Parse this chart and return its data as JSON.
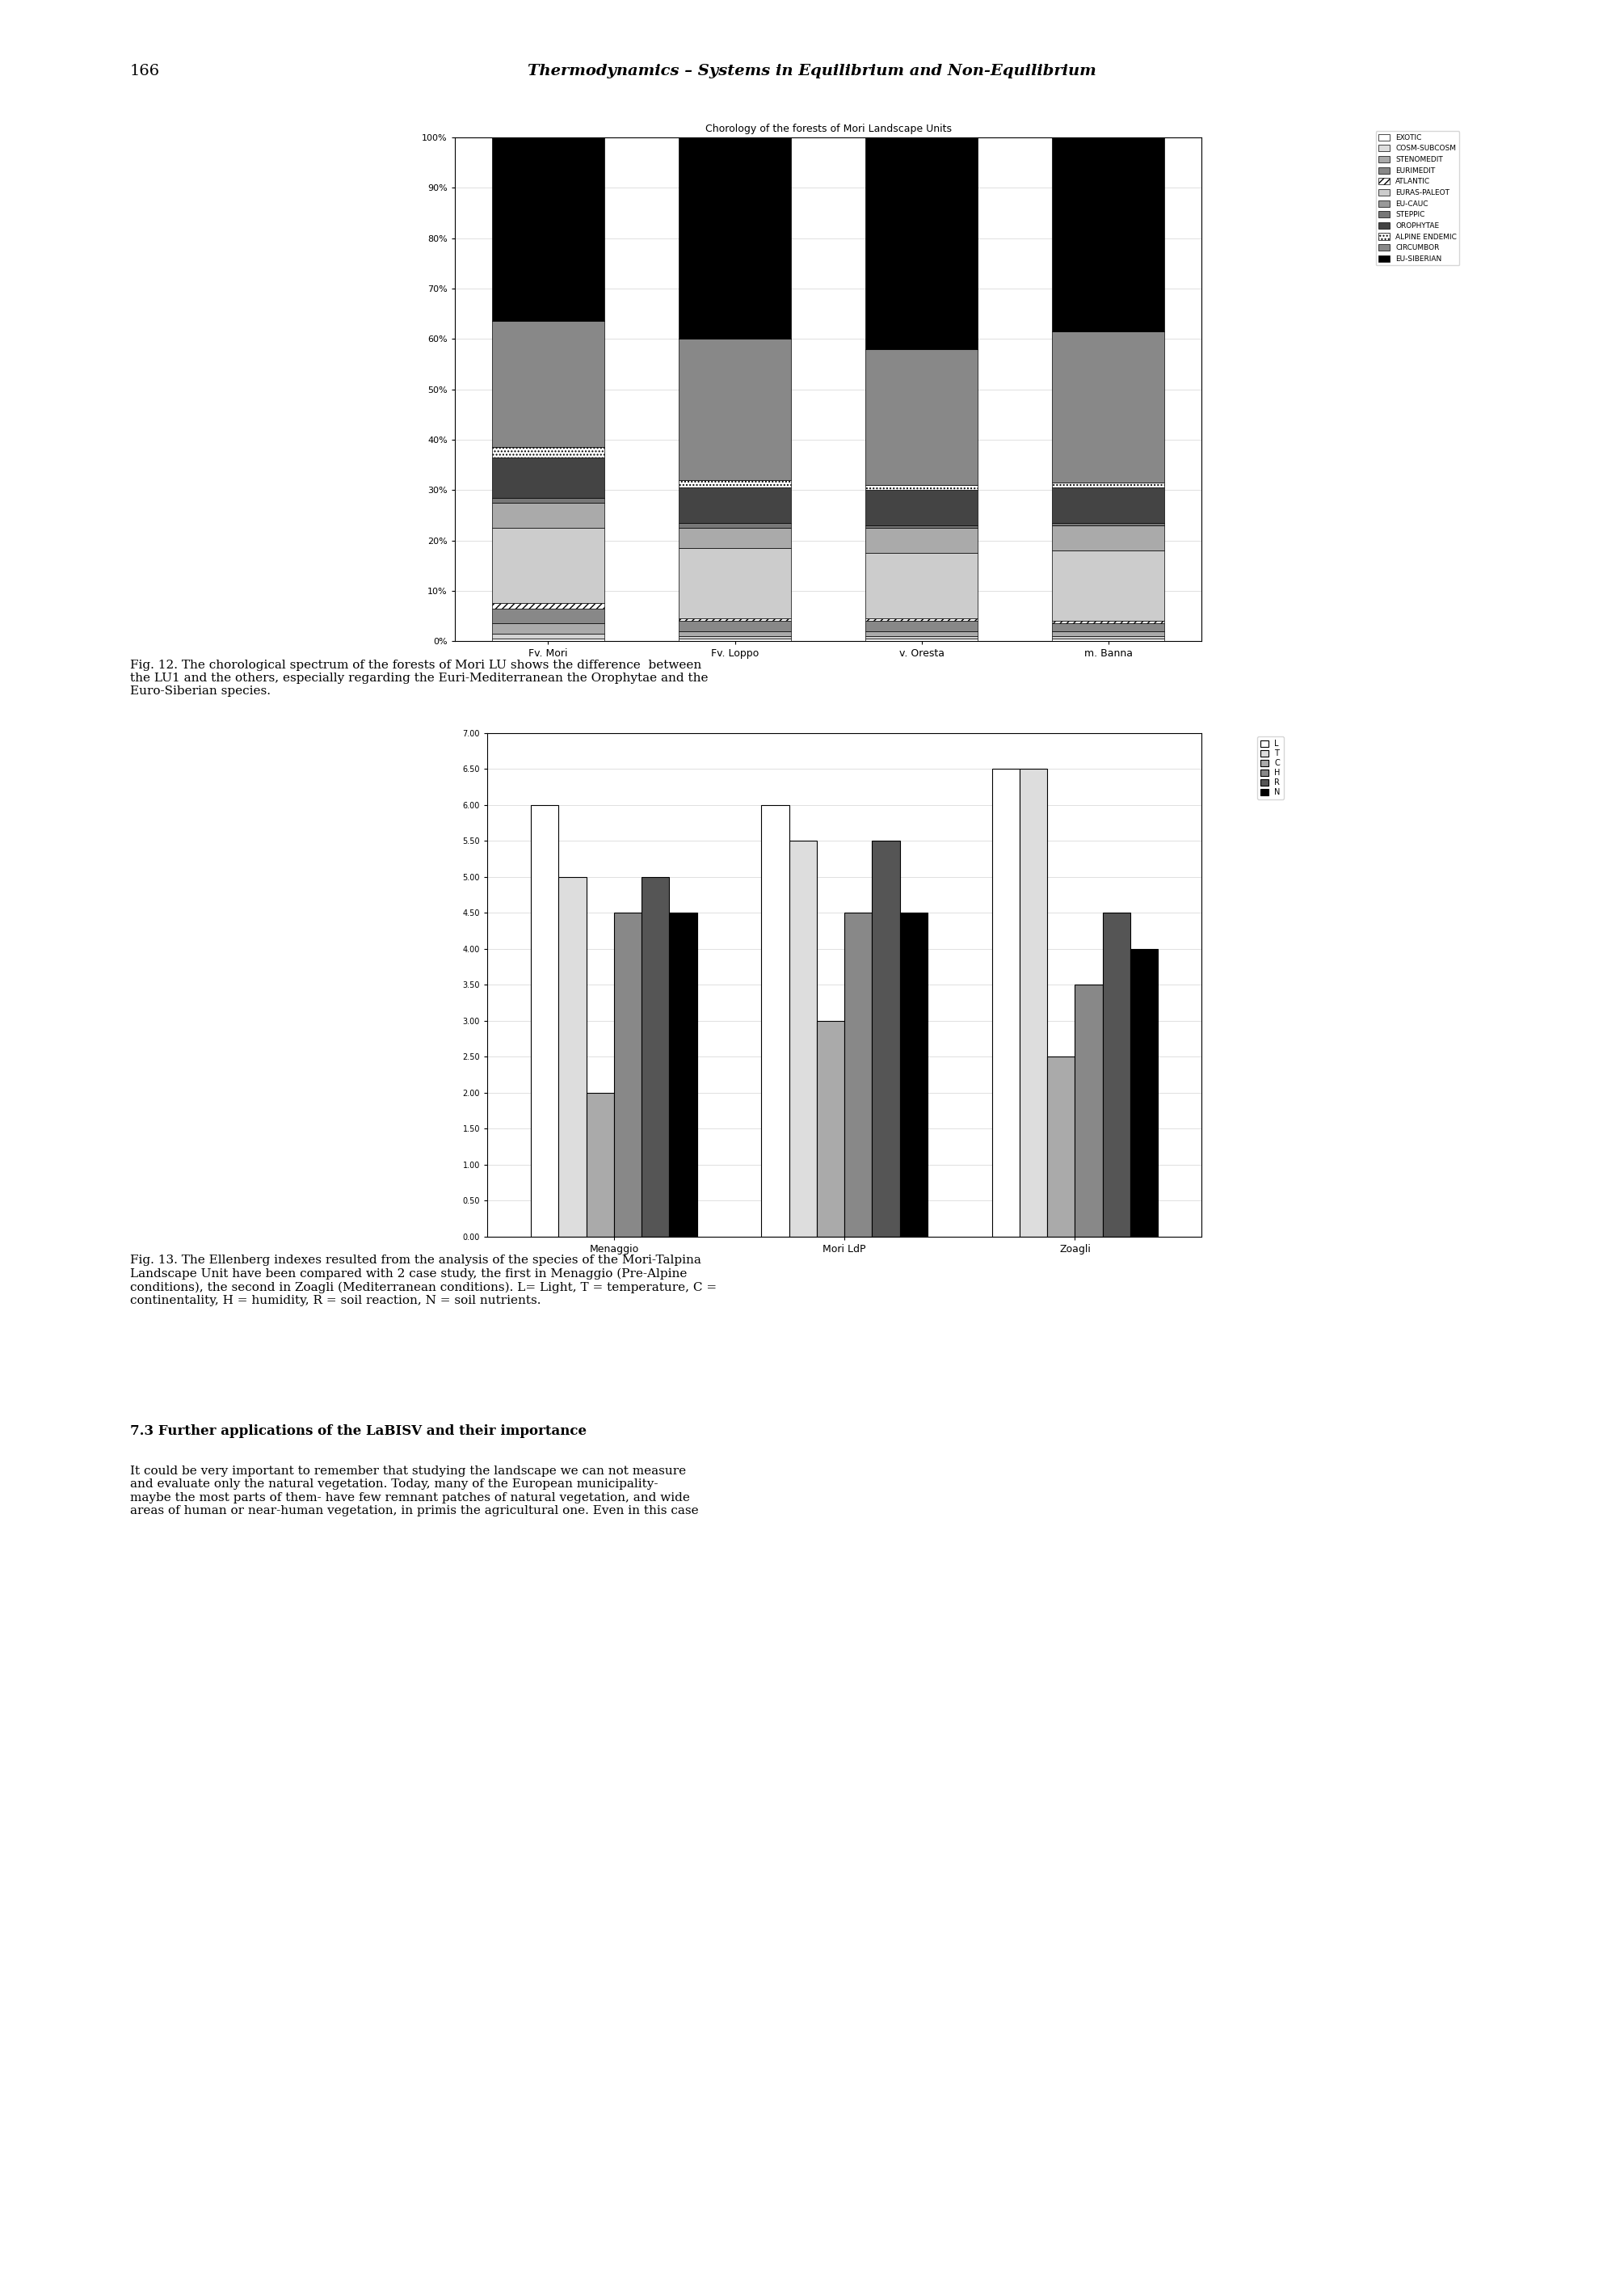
{
  "page_title": "166",
  "page_header": "Thermodynamics – Systems in Equilibrium and Non-Equilibrium",
  "fig12_title": "Chorology of the forests of Mori Landscape Units",
  "fig12_categories": [
    "Fv. Mori",
    "Fv. Loppo",
    "v. Oresta",
    "m. Banna"
  ],
  "fig12_legend": [
    "EXOTIC",
    "COSM-SUBCOSM",
    "STENOMEDIT",
    "EURIMEDIT",
    "ATLANTIC",
    "EURAS-PALEOT",
    "EU-CAUC",
    "STEPPIC",
    "OROPHYTAE",
    "ALPINE ENDEMIC",
    "CIRCUMBOR",
    "EU-SIBERIAN"
  ],
  "fig12_colors": [
    "#ffffff",
    "#cccccc",
    "#999999",
    "#666666",
    "#ffffff",
    "#cccccc",
    "#999999",
    "#666666",
    "#333333",
    "#ffffff",
    "#666666",
    "#000000"
  ],
  "fig12_data": [
    [
      0.5,
      0.5,
      0.5,
      0.5
    ],
    [
      1.0,
      0.5,
      0.5,
      0.5
    ],
    [
      2.0,
      1.0,
      1.0,
      1.0
    ],
    [
      3.0,
      2.0,
      2.0,
      1.5
    ],
    [
      1.0,
      0.5,
      0.5,
      0.5
    ],
    [
      15.0,
      14.0,
      13.0,
      14.0
    ],
    [
      5.0,
      4.0,
      5.0,
      5.0
    ],
    [
      1.0,
      1.0,
      0.5,
      0.5
    ],
    [
      8.0,
      7.0,
      7.0,
      7.0
    ],
    [
      2.0,
      1.5,
      1.0,
      1.0
    ],
    [
      25.0,
      28.0,
      27.0,
      30.0
    ],
    [
      36.5,
      40.0,
      42.5,
      39.5
    ]
  ],
  "fig12_caption": "Fig. 12. The chorological spectrum of the forests of Mori LU shows the difference  between\nthe LU1 and the others, especially regarding the Euri-Mediterranean the Orophytae and the\nEuro-Siberian species.",
  "fig13_title": "",
  "fig13_groups": [
    "Menaggio",
    "Mori LdP",
    "Zoagli"
  ],
  "fig13_parameters": [
    "L",
    "T",
    "C",
    "H",
    "R",
    "N"
  ],
  "fig13_colors": [
    "#ffffff",
    "#999999",
    "#000000"
  ],
  "fig13_data": {
    "Menaggio": [
      6.0,
      5.0,
      2.0,
      4.5,
      5.0,
      4.5
    ],
    "Mori LdP": [
      6.0,
      5.5,
      3.0,
      4.5,
      5.5,
      4.5
    ],
    "Zoagli": [
      6.5,
      6.5,
      2.5,
      3.5,
      4.5,
      4.0
    ]
  },
  "fig13_ylim": [
    0,
    7.0
  ],
  "fig13_yticks": [
    0.0,
    0.5,
    1.0,
    1.5,
    2.0,
    2.5,
    3.0,
    3.5,
    4.0,
    4.5,
    5.0,
    5.5,
    6.0,
    6.5,
    7.0
  ],
  "fig13_caption": "Fig. 13. The Ellenberg indexes resulted from the analysis of the species of the Mori-Talpina\nLandscape Unit have been compared with 2 case study, the first in Menaggio (Pre-Alpine\nconditions), the second in Zoagli (Mediterranean conditions). L= Light, T = temperature, C =\ncontinentality, H = humidity, R = soil reaction, N = soil nutrients.",
  "section_title": "7.3 Further applications of the LaBISV and their importance",
  "section_text": "It could be very important to remember that studying the landscape we can not measure\nand evaluate only the natural vegetation. Today, many of the European municipality-\nmaybe the most parts of them- have few remnant patches of natural vegetation, and wide\nareas of human or near-human vegetation, in primis the agricultural one. Even in this case"
}
